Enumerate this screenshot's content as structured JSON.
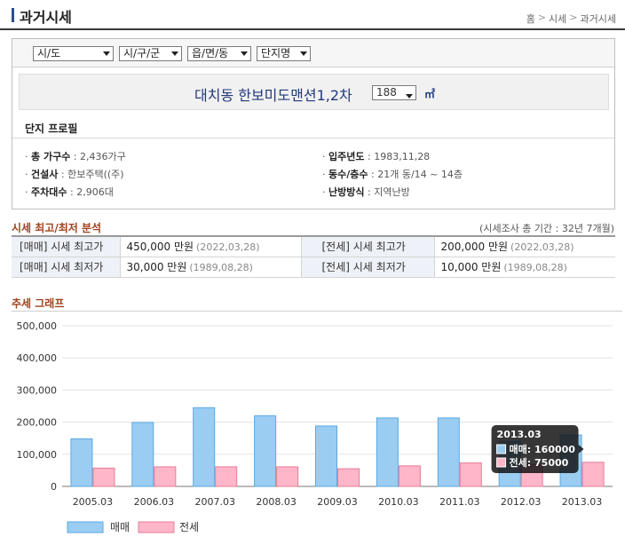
{
  "header": {
    "title": "과거시세",
    "breadcrumb": [
      "홈",
      "시세",
      "과거시세"
    ],
    "breadcrumb_sep": ">"
  },
  "filters": {
    "sido": "시/도",
    "sigungu": "시/구/군",
    "eupmyeondong": "읍/면/동",
    "complex": "단지명"
  },
  "apartment": {
    "name": "대치동 한보미도맨션1,2차",
    "area_value": "188",
    "area_unit": "㎡"
  },
  "profile": {
    "title": "단지 프로필",
    "households_label": "총 가구수",
    "households_value": "2,436가구",
    "builder_label": "건설사",
    "builder_value": "한보주택((주)",
    "parking_label": "주차대수",
    "parking_value": "2,906대",
    "movein_label": "입주년도",
    "movein_value": "1983,11,28",
    "buildings_label": "동수/층수",
    "buildings_value": "21개 동/14 ~ 14층",
    "heating_label": "난방방식",
    "heating_value": "지역난방",
    "bullet": "·",
    "colon": ":"
  },
  "analysis": {
    "title": "시세 최고/최저 분석",
    "survey_period": "(시세조사 총 기간 : 32년 7개월)",
    "rows": [
      {
        "sale_label": "[매매] 시세 최고가",
        "sale_value": "450,000 만원",
        "sale_date": "(2022,03,28)",
        "jeonse_label": "[전세] 시세 최고가",
        "jeonse_value": "200,000 만원",
        "jeonse_date": "(2022,03,28)"
      },
      {
        "sale_label": "[매매] 시세 최저가",
        "sale_value": "30,000 만원",
        "sale_date": "(1989,08,28)",
        "jeonse_label": "[전세] 시세 최저가",
        "jeonse_value": "10,000 만원",
        "jeonse_date": "(1989,08,28)"
      }
    ]
  },
  "trend": {
    "title": "추세 그래프"
  },
  "colors": {
    "sale": "#9bcdf2",
    "sale_border": "#5aa7e0",
    "jeonse": "#ffb6c8",
    "jeonse_border": "#e77c98",
    "section_title": "#a0411c",
    "apt_name": "#223a7a"
  },
  "chart_data": {
    "type": "bar",
    "categories": [
      "2005.03",
      "2006.03",
      "2007.03",
      "2008.03",
      "2009.03",
      "2010.03",
      "2011.03",
      "2012.03",
      "2013.03"
    ],
    "series": [
      {
        "name": "매매",
        "values": [
          148000,
          199000,
          245000,
          220000,
          188000,
          213000,
          213000,
          140000,
          160000
        ]
      },
      {
        "name": "전세",
        "values": [
          57000,
          61000,
          61000,
          61000,
          55000,
          64000,
          73000,
          68000,
          75000
        ]
      }
    ],
    "ylim": [
      0,
      500000
    ],
    "yticks": [
      "0",
      "100,000",
      "200,000",
      "300,000",
      "400,000",
      "500,000"
    ],
    "grid": true,
    "legend": "bottom-left",
    "tooltip": {
      "category": "2013.03",
      "lines": [
        "매매: 160000",
        "전세: 75000"
      ]
    }
  }
}
